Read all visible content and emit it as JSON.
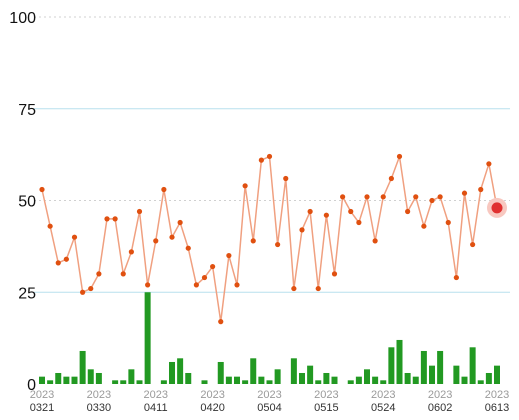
{
  "chart_data": {
    "type": "line",
    "title": "",
    "xlabel": "",
    "ylabel": "",
    "ylim": [
      0,
      100
    ],
    "y_ticks": [
      "100",
      "75",
      "50",
      "25",
      "0"
    ],
    "y_tick_values": [
      100,
      75,
      50,
      25,
      0
    ],
    "x_tick_labels": [
      {
        "year": "2023",
        "date": "0321",
        "index": 0
      },
      {
        "year": "2023",
        "date": "0330",
        "index": 7
      },
      {
        "year": "2023",
        "date": "0411",
        "index": 14
      },
      {
        "year": "2023",
        "date": "0420",
        "index": 21
      },
      {
        "year": "2023",
        "date": "0504",
        "index": 28
      },
      {
        "year": "2023",
        "date": "0515",
        "index": 35
      },
      {
        "year": "2023",
        "date": "0524",
        "index": 42
      },
      {
        "year": "2023",
        "date": "0602",
        "index": 49
      },
      {
        "year": "2023",
        "date": "0613",
        "index": 56
      }
    ],
    "grid": true,
    "colors": {
      "line": "#f0a080",
      "marker": "#e05010",
      "highlight": "#e03030",
      "highlight_halo": "#f8c8c0",
      "bar": "#229922",
      "grid_solid": "#b8e0ee",
      "grid_dotted": "#d0d0d0"
    },
    "series": [
      {
        "kind": "line",
        "values": [
          53,
          43,
          33,
          34,
          40,
          25,
          26,
          30,
          45,
          45,
          30,
          36,
          47,
          27,
          39,
          53,
          40,
          44,
          37,
          27,
          29,
          32,
          17,
          35,
          27,
          54,
          39,
          61,
          62,
          38,
          56,
          26,
          42,
          47,
          26,
          46,
          30,
          51,
          47,
          44,
          51,
          39,
          51,
          56,
          62,
          47,
          51,
          43,
          50,
          51,
          44,
          29,
          52,
          38,
          53,
          60,
          48
        ],
        "highlight_index": 56
      },
      {
        "kind": "bar",
        "values": [
          2,
          1,
          3,
          2,
          2,
          9,
          4,
          3,
          0,
          1,
          1,
          4,
          1,
          25,
          0,
          1,
          6,
          7,
          3,
          0,
          1,
          0,
          6,
          2,
          2,
          1,
          7,
          2,
          1,
          4,
          0,
          7,
          3,
          5,
          1,
          3,
          2,
          0,
          1,
          2,
          4,
          2,
          1,
          10,
          12,
          3,
          2,
          9,
          5,
          9,
          0,
          5,
          2,
          10,
          1,
          3,
          5
        ]
      }
    ]
  }
}
